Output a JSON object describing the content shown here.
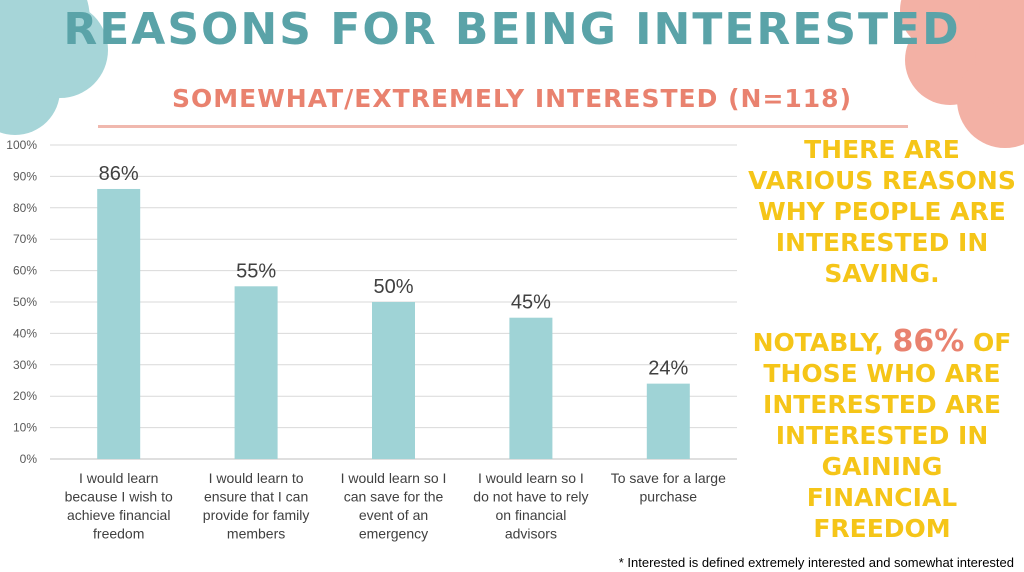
{
  "title": "REASONS FOR BEING INTERESTED",
  "subtitle": "SOMEWHAT/EXTREMELY INTERESTED (N=118)",
  "side_text": {
    "para1": "There are various reasons why people are interested in saving.",
    "para2_before": "Notably,",
    "para2_highlight": "86%",
    "para2_after": "of those who are interested are interested in gaining financial freedom"
  },
  "footnote": "* Interested is defined extremely interested and somewhat interested",
  "colors": {
    "title": "#5aa3a8",
    "subtitle": "#e9826f",
    "side_text": "#f5c518",
    "highlight": "#e9826f",
    "bar": "#9fd3d6",
    "blob_left": "#a6d5d8",
    "blob_right": "#f3b1a5"
  },
  "chart_data": {
    "type": "bar",
    "categories": [
      [
        "I would learn",
        "because I wish to",
        "achieve financial",
        "freedom"
      ],
      [
        "I would learn to",
        "ensure that I can",
        "provide for family",
        "members"
      ],
      [
        "I would learn so I",
        "can save for the",
        "event of an",
        "emergency"
      ],
      [
        "I would learn so I",
        "do not have to rely",
        "on financial",
        "advisors"
      ],
      [
        "To  save for a large",
        "purchase"
      ]
    ],
    "values": [
      86,
      55,
      50,
      45,
      24
    ],
    "data_labels": [
      "86%",
      "55%",
      "50%",
      "45%",
      "24%"
    ],
    "yticks": [
      "0%",
      "10%",
      "20%",
      "30%",
      "40%",
      "50%",
      "60%",
      "70%",
      "80%",
      "90%",
      "100%"
    ],
    "ylim": [
      0,
      100
    ],
    "grid": true,
    "legend": "none"
  }
}
